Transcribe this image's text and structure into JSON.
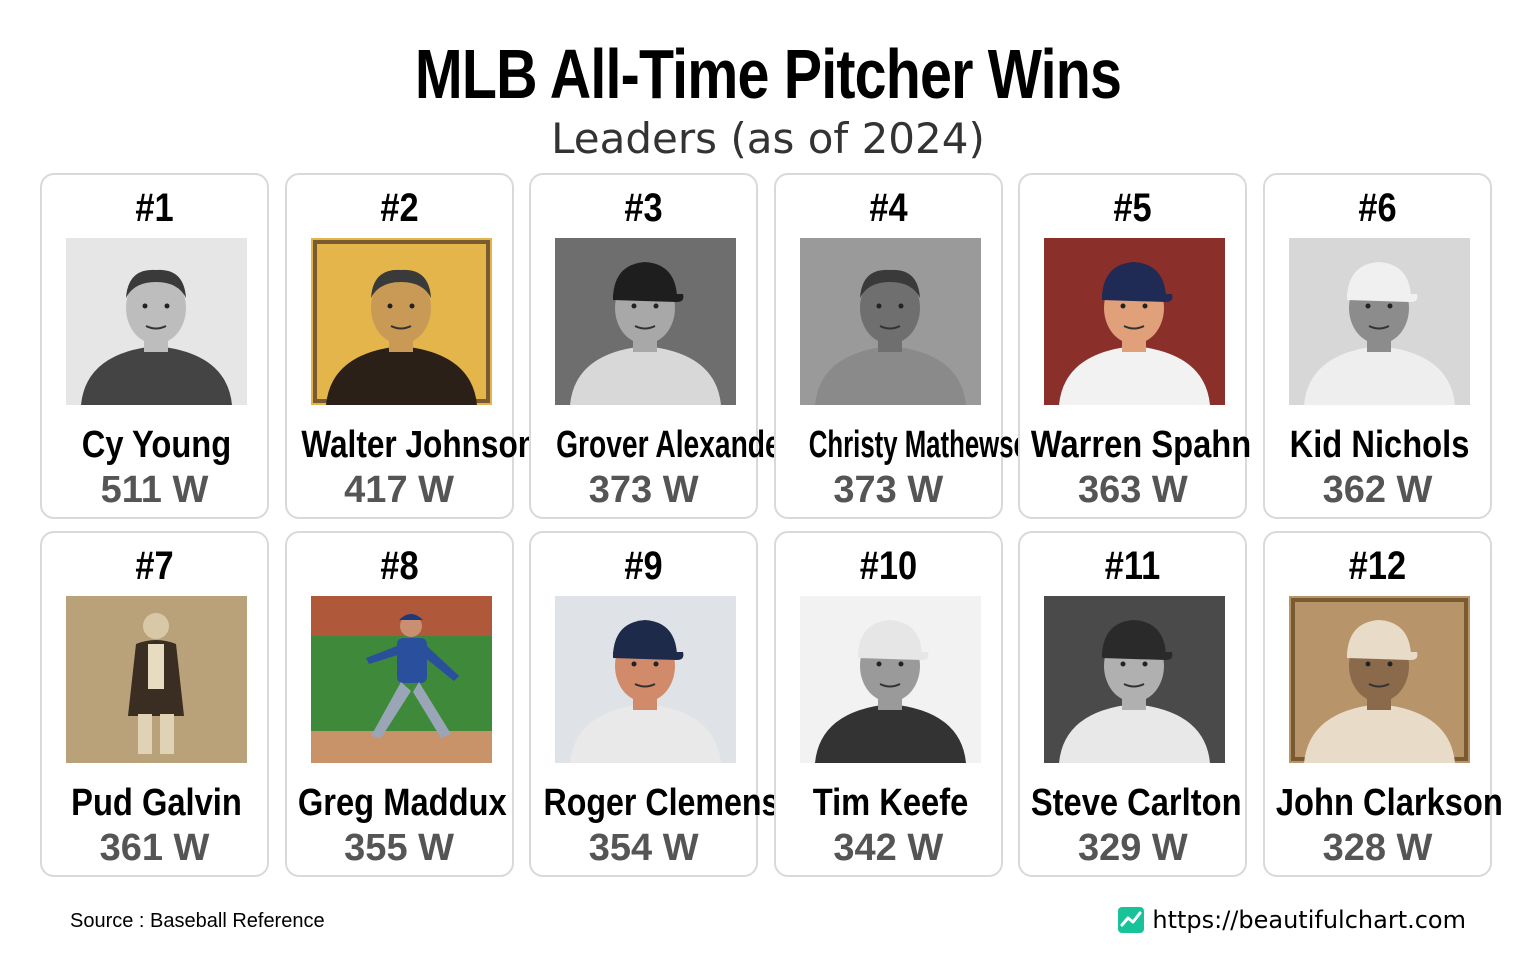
{
  "title": "MLB All-Time Pitcher Wins",
  "subtitle": "Leaders (as of 2024)",
  "pitchers": [
    {
      "rank": "#1",
      "name": "Cy Young",
      "wins": "511 W",
      "photo": "portrait-bw",
      "cap": "none",
      "bg": "#e6e6e6",
      "skin": "#bdbdbd",
      "shirt": "#444444",
      "hat": "#333333"
    },
    {
      "rank": "#2",
      "name": "Walter Johnson",
      "wins": "417 W",
      "photo": "card-yellow",
      "cap": "none",
      "bg": "#e3b54a",
      "skin": "#c99a56",
      "shirt": "#2a2018",
      "hat": "#333333"
    },
    {
      "rank": "#3",
      "name": "Grover Alexander",
      "wins": "373 W",
      "photo": "portrait-bw",
      "cap": "cap",
      "bg": "#6e6e6e",
      "skin": "#a8a8a8",
      "shirt": "#d8d8d8",
      "hat": "#1e1e1e"
    },
    {
      "rank": "#4",
      "name": "Christy Mathewson",
      "wins": "373 W",
      "photo": "portrait-bw",
      "cap": "none",
      "bg": "#9a9a9a",
      "skin": "#6f6f6f",
      "shirt": "#8a8a8a",
      "hat": "#333333"
    },
    {
      "rank": "#5",
      "name": "Warren Spahn",
      "wins": "363 W",
      "photo": "portrait-color",
      "cap": "cap",
      "bg": "#8a2f2a",
      "skin": "#e0a07a",
      "shirt": "#f2f2f2",
      "hat": "#1f2a55"
    },
    {
      "rank": "#6",
      "name": "Kid Nichols",
      "wins": "362 W",
      "photo": "portrait-bw",
      "cap": "cap",
      "bg": "#d7d7d7",
      "skin": "#8c8c8c",
      "shirt": "#eeeeee",
      "hat": "#f0f0f0"
    },
    {
      "rank": "#7",
      "name": "Pud Galvin",
      "wins": "361 W",
      "photo": "full-sepia",
      "cap": "none",
      "bg": "#b9a27a",
      "skin": "#d8c8a8",
      "shirt": "#3a2e22",
      "hat": "#333333"
    },
    {
      "rank": "#8",
      "name": "Greg Maddux",
      "wins": "355 W",
      "photo": "field",
      "cap": "cap",
      "bg": "#3f8a3a",
      "skin": "#c89070",
      "shirt": "#2a4f9c",
      "hat": "#1d3a7a"
    },
    {
      "rank": "#9",
      "name": "Roger Clemens",
      "wins": "354 W",
      "photo": "portrait-color",
      "cap": "cap",
      "bg": "#dfe3e8",
      "skin": "#d18a6a",
      "shirt": "#e9e9e9",
      "hat": "#1d2a4a"
    },
    {
      "rank": "#10",
      "name": "Tim Keefe",
      "wins": "342 W",
      "photo": "portrait-bw",
      "cap": "cap",
      "bg": "#f2f2f2",
      "skin": "#9a9a9a",
      "shirt": "#333333",
      "hat": "#e6e6e6"
    },
    {
      "rank": "#11",
      "name": "Steve Carlton",
      "wins": "329 W",
      "photo": "portrait-bw",
      "cap": "cap",
      "bg": "#4a4a4a",
      "skin": "#b0b0b0",
      "shirt": "#e8e8e8",
      "hat": "#2a2a2a"
    },
    {
      "rank": "#12",
      "name": "John Clarkson",
      "wins": "328 W",
      "photo": "card-sepia",
      "cap": "cap",
      "bg": "#b8946a",
      "skin": "#8a6a4a",
      "shirt": "#e8dcc8",
      "hat": "#e8dcc8"
    }
  ],
  "footer": {
    "source": "Source : Baseball Reference",
    "site": "https://beautifulchart.com",
    "logo_color": "#19c39a"
  }
}
